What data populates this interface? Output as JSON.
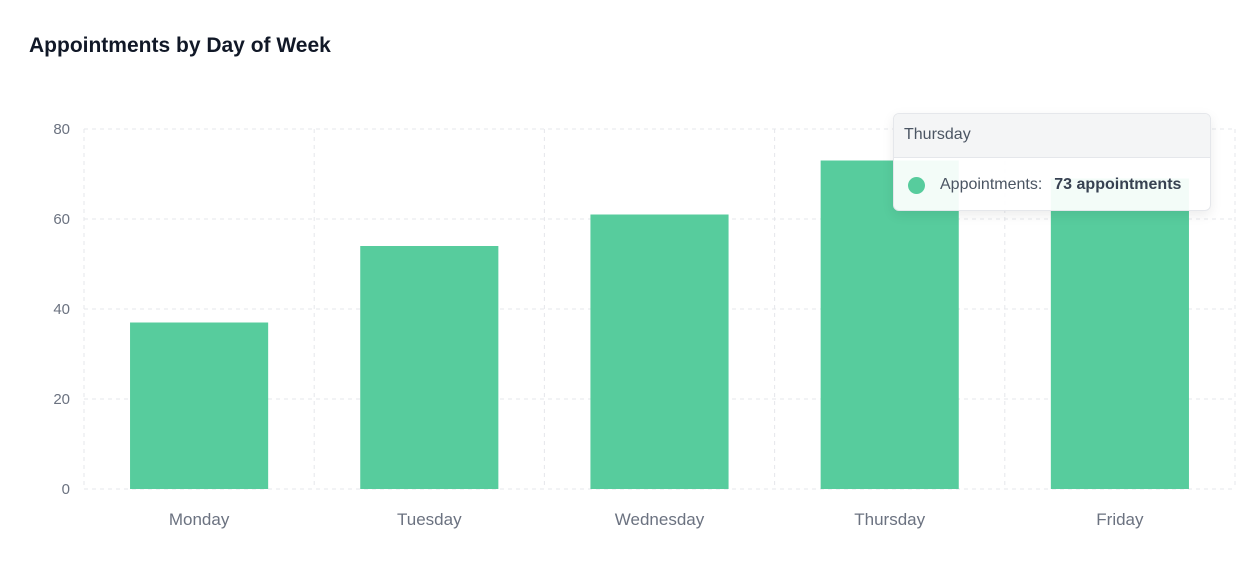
{
  "chart_data": {
    "type": "bar",
    "title": "Appointments by Day of Week",
    "categories": [
      "Monday",
      "Tuesday",
      "Wednesday",
      "Thursday",
      "Friday"
    ],
    "series": [
      {
        "name": "Appointments",
        "values": [
          37,
          54,
          61,
          73,
          69
        ],
        "color": "#57cc9d"
      }
    ],
    "xlabel": "",
    "ylabel": "",
    "ylim": [
      0,
      80
    ],
    "yticks": [
      0,
      20,
      40,
      60,
      80
    ],
    "grid": true,
    "legend": "none"
  },
  "tooltip": {
    "category": "Thursday",
    "series_label": "Appointments:",
    "value_text": "73 appointments",
    "dot_color": "#57cc9d"
  },
  "colors": {
    "bar": "#57cc9d",
    "grid": "#e5e7eb",
    "axis_text": "#6b7280",
    "title": "#111827"
  }
}
